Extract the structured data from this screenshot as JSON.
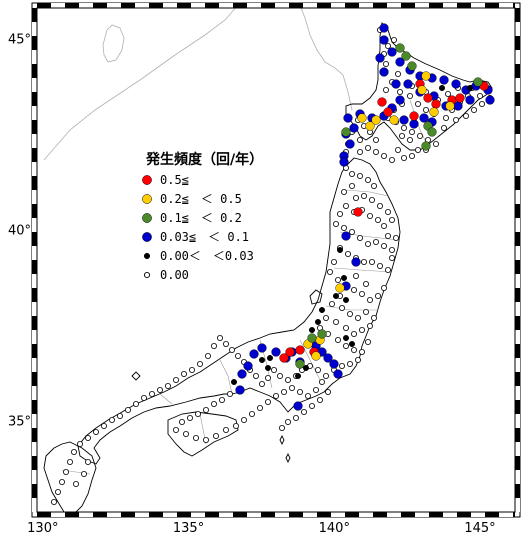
{
  "axes": {
    "lon_ticks": [
      {
        "value": 130,
        "label": "130°"
      },
      {
        "value": 135,
        "label": "135°"
      },
      {
        "value": 140,
        "label": "140°"
      },
      {
        "value": 145,
        "label": "145°"
      }
    ],
    "lat_ticks": [
      {
        "value": 35,
        "label": "35°"
      },
      {
        "value": 40,
        "label": "40°"
      },
      {
        "value": 45,
        "label": "45°"
      }
    ],
    "lon_range": [
      129.8,
      146.2
    ],
    "lat_range": [
      32.6,
      45.8
    ]
  },
  "legend": {
    "title": "発生頻度（回/年）",
    "items": [
      {
        "label": "0.5≦",
        "color": "#ff0000",
        "key": "r"
      },
      {
        "label": "0.2≦　＜ 0.5",
        "color": "#ffcc00",
        "key": "y"
      },
      {
        "label": "0.1≦　＜ 0.2",
        "color": "#4a8a2a",
        "key": "g"
      },
      {
        "label": "0.03≦　＜ 0.1",
        "color": "#0000cc",
        "key": "b"
      },
      {
        "label": "0.00＜　＜0.03",
        "color": "#000000",
        "key": "k"
      },
      {
        "label": "0.00",
        "color": "#ffffff",
        "key": "w"
      }
    ]
  },
  "colors": {
    "coast": "#000000",
    "land_border": "#999999",
    "foreign_coast": "#b0b0b0",
    "frame_dark": "#000000",
    "frame_light": "#ffffff"
  }
}
